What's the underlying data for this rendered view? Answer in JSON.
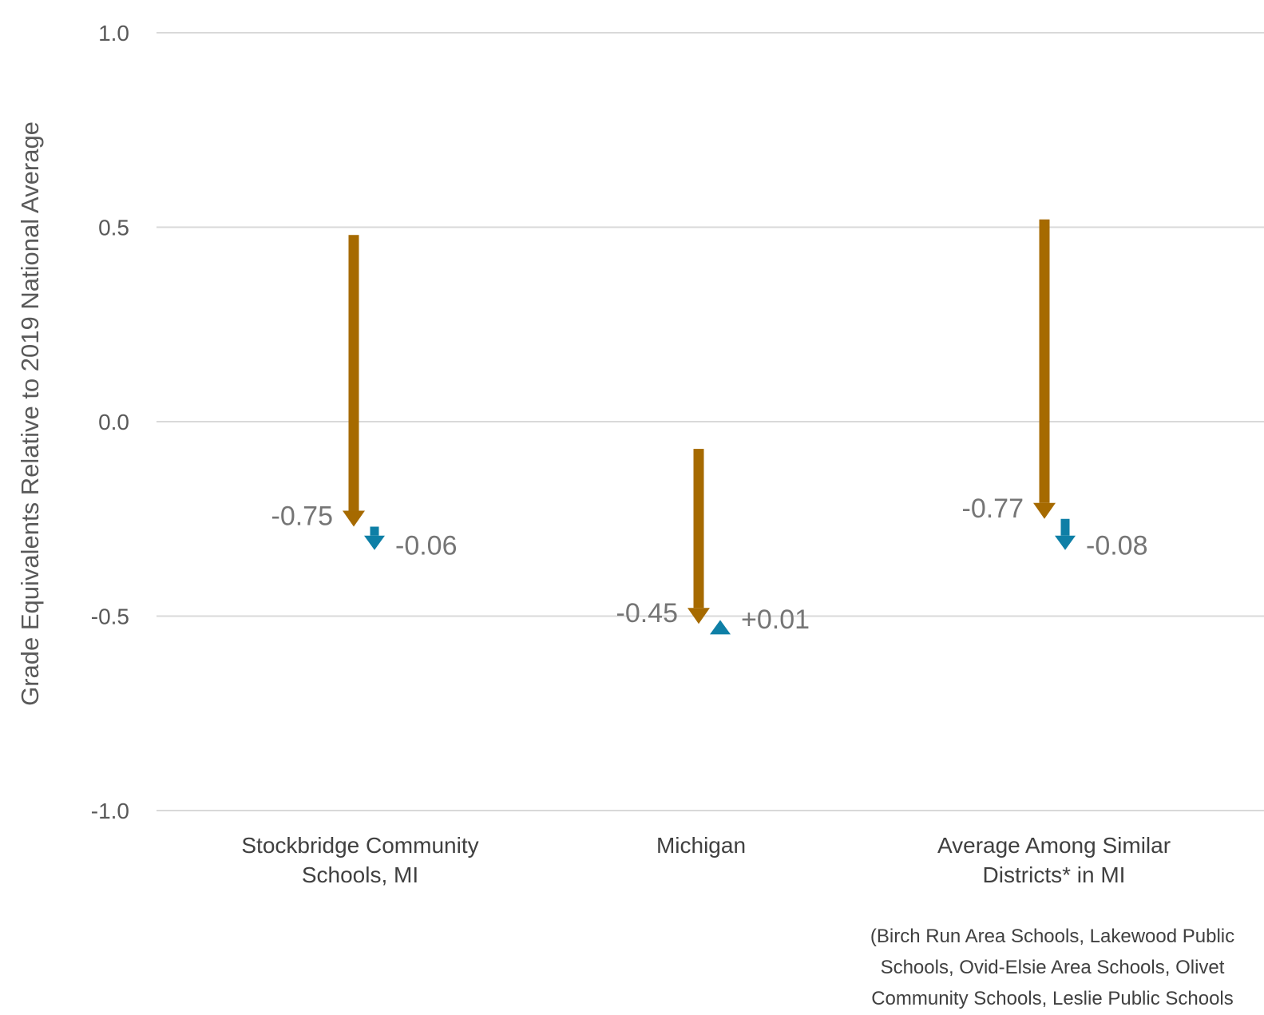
{
  "chart_data": {
    "type": "arrow",
    "ylabel": "Grade Equivalents Relative to 2019 National Average",
    "ylim": [
      -1.0,
      1.0
    ],
    "yticks": [
      "1.0",
      "0.5",
      "0.0",
      "-0.5",
      "-1.0"
    ],
    "grid": true,
    "categories": [
      [
        "Stockbridge Community",
        "Schools, MI"
      ],
      [
        "Michigan"
      ],
      [
        "Average Among Similar",
        "Districts* in MI"
      ]
    ],
    "footnote": [
      "(Birch Run Area Schools, Lakewood Public",
      "Schools, Ovid-Elsie Area Schools, Olivet",
      "Community Schools, Leslie Public Schools"
    ],
    "series": [
      {
        "color": "#A66A00",
        "points": [
          {
            "start": 0.48,
            "end": -0.27,
            "label": "-0.75"
          },
          {
            "start": -0.07,
            "end": -0.52,
            "label": "-0.45"
          },
          {
            "start": 0.52,
            "end": -0.25,
            "label": "-0.77"
          }
        ]
      },
      {
        "color": "#0E7FA6",
        "points": [
          {
            "start": -0.27,
            "end": -0.33,
            "label": "-0.06"
          },
          {
            "start": -0.52,
            "end": -0.51,
            "label": "+0.01"
          },
          {
            "start": -0.25,
            "end": -0.33,
            "label": "-0.08"
          }
        ]
      }
    ]
  }
}
